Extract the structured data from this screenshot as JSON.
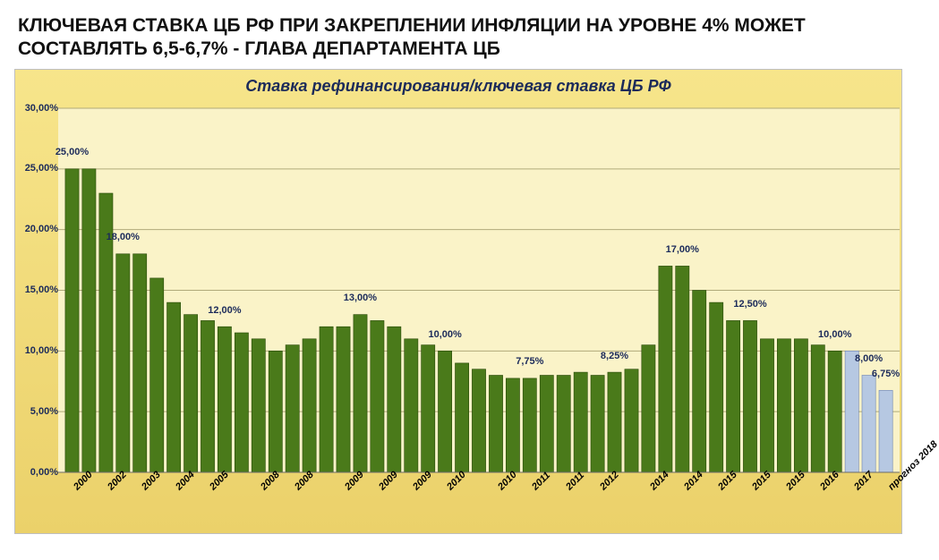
{
  "headline": "КЛЮЧЕВАЯ СТАВКА ЦБ РФ ПРИ ЗАКРЕПЛЕНИИ ИНФЛЯЦИИ НА УРОВНЕ 4% МОЖЕТ СОСТАВЛЯТЬ 6,5-6,7% - ГЛАВА ДЕПАРТАМЕНТА ЦБ",
  "chart": {
    "type": "bar",
    "title": "Ставка рефинансирования/ключевая  ставка ЦБ РФ",
    "title_color": "#1b2a5a",
    "title_fontsize": 18,
    "background_gradient": [
      "#f7e58b",
      "#ebd16a"
    ],
    "plot_background": "#faf3c8",
    "grid_color": "#b0aa7a",
    "axis_color": "#6b6b6b",
    "bar_color": "#4a7a1a",
    "bar_border": "#2a4a0a",
    "forecast_color": "#b6c8e2",
    "forecast_border": "#6d84b4",
    "text_color": "#1b2a5a",
    "y": {
      "min": 0,
      "max": 30,
      "step": 5,
      "format_suffix": ",00%"
    },
    "series": [
      {
        "x": "2000",
        "v": 25.0
      },
      {
        "x": "",
        "v": 25.0
      },
      {
        "x": "2002",
        "v": 23.0
      },
      {
        "x": "",
        "v": 18.0
      },
      {
        "x": "2003",
        "v": 18.0
      },
      {
        "x": "",
        "v": 16.0
      },
      {
        "x": "2004",
        "v": 14.0
      },
      {
        "x": "",
        "v": 13.0
      },
      {
        "x": "2005",
        "v": 12.5
      },
      {
        "x": "",
        "v": 12.0
      },
      {
        "x": "",
        "v": 11.5
      },
      {
        "x": "2008",
        "v": 11.0
      },
      {
        "x": "",
        "v": 10.0
      },
      {
        "x": "2008",
        "v": 10.5
      },
      {
        "x": "",
        "v": 11.0
      },
      {
        "x": "",
        "v": 12.0
      },
      {
        "x": "2009",
        "v": 12.0
      },
      {
        "x": "",
        "v": 13.0
      },
      {
        "x": "2009",
        "v": 12.5
      },
      {
        "x": "",
        "v": 12.0
      },
      {
        "x": "2009",
        "v": 11.0
      },
      {
        "x": "",
        "v": 10.5
      },
      {
        "x": "2010",
        "v": 10.0
      },
      {
        "x": "",
        "v": 9.0
      },
      {
        "x": "",
        "v": 8.5
      },
      {
        "x": "2010",
        "v": 8.0
      },
      {
        "x": "",
        "v": 7.75
      },
      {
        "x": "2011",
        "v": 7.75
      },
      {
        "x": "",
        "v": 8.0
      },
      {
        "x": "2011",
        "v": 8.0
      },
      {
        "x": "",
        "v": 8.25
      },
      {
        "x": "2012",
        "v": 8.0
      },
      {
        "x": "",
        "v": 8.25
      },
      {
        "x": "",
        "v": 8.5
      },
      {
        "x": "2014",
        "v": 10.5
      },
      {
        "x": "",
        "v": 17.0
      },
      {
        "x": "2014",
        "v": 17.0
      },
      {
        "x": "",
        "v": 15.0
      },
      {
        "x": "2015",
        "v": 14.0
      },
      {
        "x": "",
        "v": 12.5
      },
      {
        "x": "2015",
        "v": 12.5
      },
      {
        "x": "",
        "v": 11.0
      },
      {
        "x": "2015",
        "v": 11.0
      },
      {
        "x": "",
        "v": 11.0
      },
      {
        "x": "2016",
        "v": 10.5
      },
      {
        "x": "",
        "v": 10.0
      },
      {
        "x": "2017",
        "v": 10.0,
        "forecast": true
      },
      {
        "x": "",
        "v": 8.0,
        "forecast": true
      },
      {
        "x": "прогноз 2018",
        "v": 6.75,
        "forecast": true
      }
    ],
    "annotations": [
      {
        "i": 0,
        "text": "25,00%"
      },
      {
        "i": 3,
        "text": "18,00%"
      },
      {
        "i": 9,
        "text": "12,00%"
      },
      {
        "i": 17,
        "text": "13,00%"
      },
      {
        "i": 22,
        "text": "10,00%"
      },
      {
        "i": 27,
        "text": "7,75%"
      },
      {
        "i": 32,
        "text": "8,25%"
      },
      {
        "i": 36,
        "text": "17,00%"
      },
      {
        "i": 40,
        "text": "12,50%"
      },
      {
        "i": 45,
        "text": "10,00%"
      },
      {
        "i": 47,
        "text": "8,00%"
      },
      {
        "i": 48,
        "text": "6,75%"
      }
    ]
  }
}
